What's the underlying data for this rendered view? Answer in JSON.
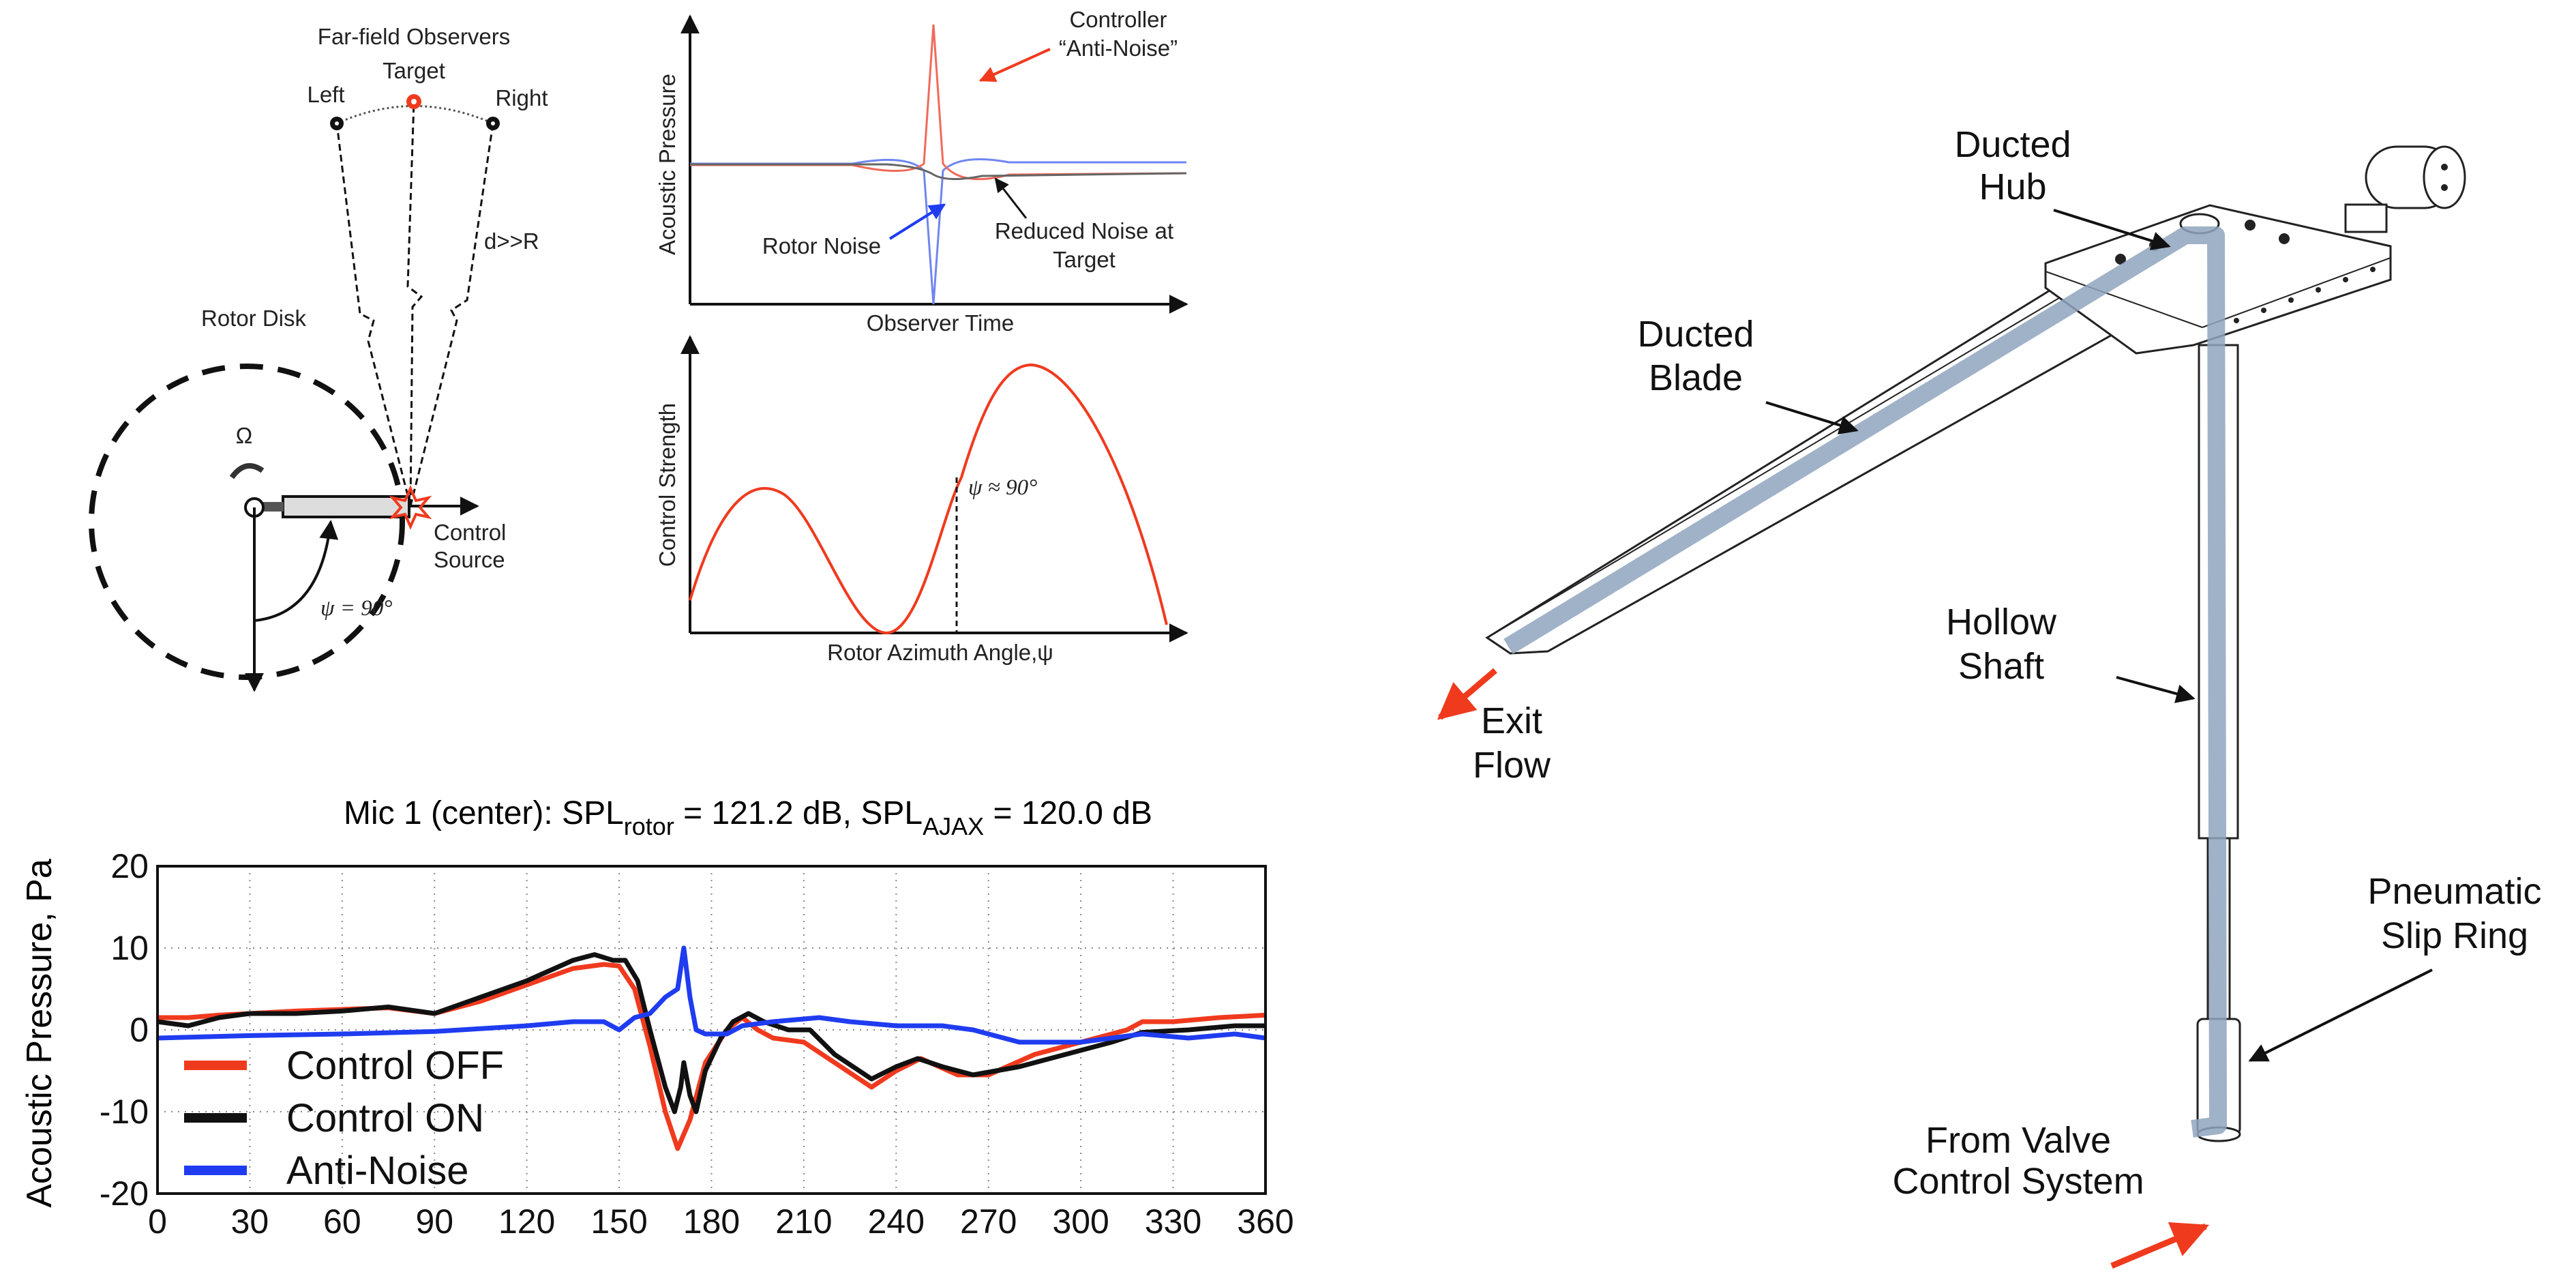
{
  "colors": {
    "red": "#f03a1e",
    "black": "#111111",
    "blue": "#1f3cf0",
    "duct": "#8fa4bd"
  },
  "rotor_diagram": {
    "observers_title": "Far-field Observers",
    "target": "Target",
    "left": "Left",
    "right": "Right",
    "distance": "d>>R",
    "rotor_disk": "Rotor Disk",
    "omega": "Ω",
    "control_source_line1": "Control",
    "control_source_line2": "Source",
    "psi": "ψ = 90°"
  },
  "pressure_sketch": {
    "ylabel": "Acoustic Pressure",
    "xlabel": "Observer Time",
    "controller_line1": "Controller",
    "controller_line2": "“Anti-Noise”",
    "rotor_noise": "Rotor Noise",
    "reduced_line1": "Reduced Noise at",
    "reduced_line2": "Target"
  },
  "strength_sketch": {
    "ylabel": "Control Strength",
    "xlabel": "Rotor Azimuth Angle,ψ",
    "marker": "ψ ≈ 90°"
  },
  "hardware": {
    "hub_line1": "Ducted",
    "hub_line2": "Hub",
    "blade_line1": "Ducted",
    "blade_line2": "Blade",
    "shaft_line1": "Hollow",
    "shaft_line2": "Shaft",
    "slip_line1": "Pneumatic",
    "slip_line2": "Slip Ring",
    "valve_line1": "From Valve",
    "valve_line2": "Control System",
    "exit_line1": "Exit",
    "exit_line2": "Flow"
  },
  "chart_data": {
    "type": "line",
    "title_prefix": "Mic 1 (center): SPL",
    "title_sub1": "rotor",
    "title_mid": " = 121.2 dB, SPL",
    "title_sub2": "AJAX",
    "title_suffix": " = 120.0 dB",
    "xlabel": "",
    "ylabel": "Acoustic Pressure, Pa",
    "xlim": [
      0,
      360
    ],
    "ylim": [
      -20,
      20
    ],
    "xticks": [
      "0",
      "30",
      "60",
      "90",
      "120",
      "150",
      "180",
      "210",
      "240",
      "270",
      "300",
      "330",
      "360"
    ],
    "yticks": [
      "20",
      "10",
      "0",
      "-10",
      "-20"
    ],
    "grid": true,
    "legend_position": "bottom-left",
    "series": [
      {
        "name": "Control OFF",
        "color": "#f03a1e",
        "x": [
          0,
          10,
          20,
          30,
          45,
          60,
          75,
          90,
          105,
          120,
          135,
          145,
          150,
          155,
          160,
          165,
          169,
          173,
          178,
          185,
          190,
          195,
          200,
          210,
          220,
          232,
          240,
          248,
          260,
          270,
          285,
          300,
          315,
          320,
          330,
          345,
          360
        ],
        "y": [
          1.5,
          1.5,
          1.8,
          2,
          2.3,
          2.5,
          2.7,
          2,
          3.5,
          5.5,
          7.5,
          8,
          7.8,
          5,
          -2,
          -10,
          -14.5,
          -11,
          -4,
          0,
          1.5,
          0,
          -1,
          -1.5,
          -4,
          -7,
          -5,
          -3.5,
          -5.5,
          -5.5,
          -3,
          -1.5,
          0,
          1,
          1,
          1.5,
          1.8
        ]
      },
      {
        "name": "Control ON",
        "color": "#111111",
        "x": [
          0,
          10,
          20,
          30,
          45,
          60,
          75,
          90,
          105,
          120,
          135,
          142,
          148,
          152,
          156,
          160,
          165,
          168,
          170,
          171,
          173,
          175,
          178,
          183,
          187,
          192,
          197,
          205,
          212,
          220,
          232,
          240,
          247,
          255,
          265,
          280,
          295,
          310,
          320,
          335,
          350,
          360
        ],
        "y": [
          1,
          0.5,
          1.5,
          2,
          2,
          2.3,
          2.8,
          2,
          4,
          6,
          8.5,
          9.2,
          8.5,
          8.5,
          6,
          0,
          -7,
          -10,
          -7,
          -4,
          -8,
          -10,
          -5,
          -1,
          1,
          2,
          1,
          0,
          0,
          -3,
          -6,
          -4.5,
          -3.5,
          -4.5,
          -5.5,
          -4.5,
          -3,
          -1.5,
          -0.3,
          0,
          0.5,
          0.5
        ]
      },
      {
        "name": "Anti-Noise",
        "color": "#1f3cf0",
        "x": [
          0,
          30,
          60,
          90,
          120,
          135,
          145,
          150,
          155,
          160,
          165,
          169,
          171,
          173,
          175,
          178,
          185,
          190,
          200,
          215,
          225,
          240,
          255,
          265,
          280,
          300,
          320,
          335,
          350,
          360
        ],
        "y": [
          -1,
          -0.7,
          -0.5,
          -0.2,
          0.5,
          1,
          1,
          0,
          1.5,
          2,
          4,
          5,
          10,
          4,
          0,
          -0.5,
          -0.5,
          0.5,
          1,
          1.5,
          1,
          0.5,
          0.5,
          0,
          -1.5,
          -1.5,
          -0.5,
          -1,
          -0.5,
          -1
        ]
      }
    ]
  }
}
